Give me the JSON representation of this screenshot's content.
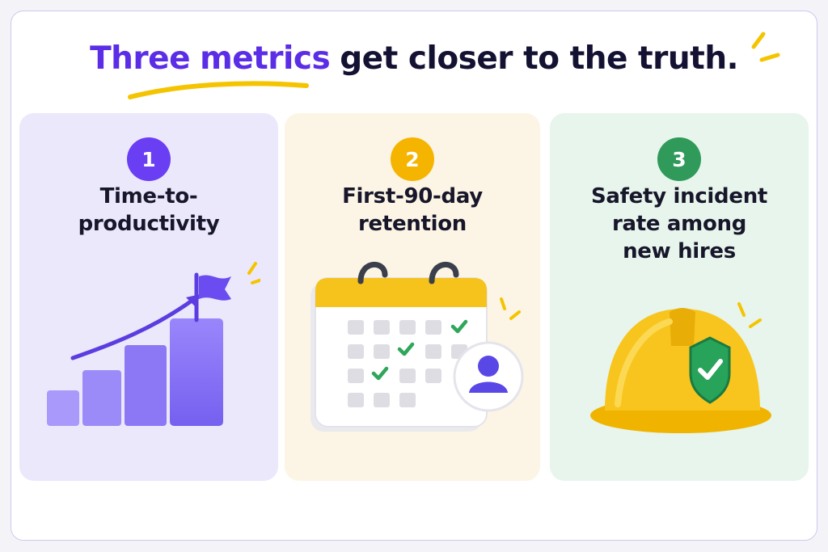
{
  "headline": {
    "accent_1": "Three",
    "accent_2": "metrics",
    "rest": "get closer to the truth."
  },
  "cards": [
    {
      "number": "1",
      "label_lines": [
        "Time-to-",
        "productivity"
      ],
      "illustration": "rising-bar-chart-with-flag-icon",
      "color": "#6a3ef2"
    },
    {
      "number": "2",
      "label_lines": [
        "First-90-day",
        "retention"
      ],
      "illustration": "calendar-with-checkmarks-and-person-icon",
      "color": "#f5b400"
    },
    {
      "number": "3",
      "label_lines": [
        "Safety incident",
        "rate among",
        "new hires"
      ],
      "illustration": "hard-hat-with-shield-check-icon",
      "color": "#2f9a5a"
    }
  ]
}
